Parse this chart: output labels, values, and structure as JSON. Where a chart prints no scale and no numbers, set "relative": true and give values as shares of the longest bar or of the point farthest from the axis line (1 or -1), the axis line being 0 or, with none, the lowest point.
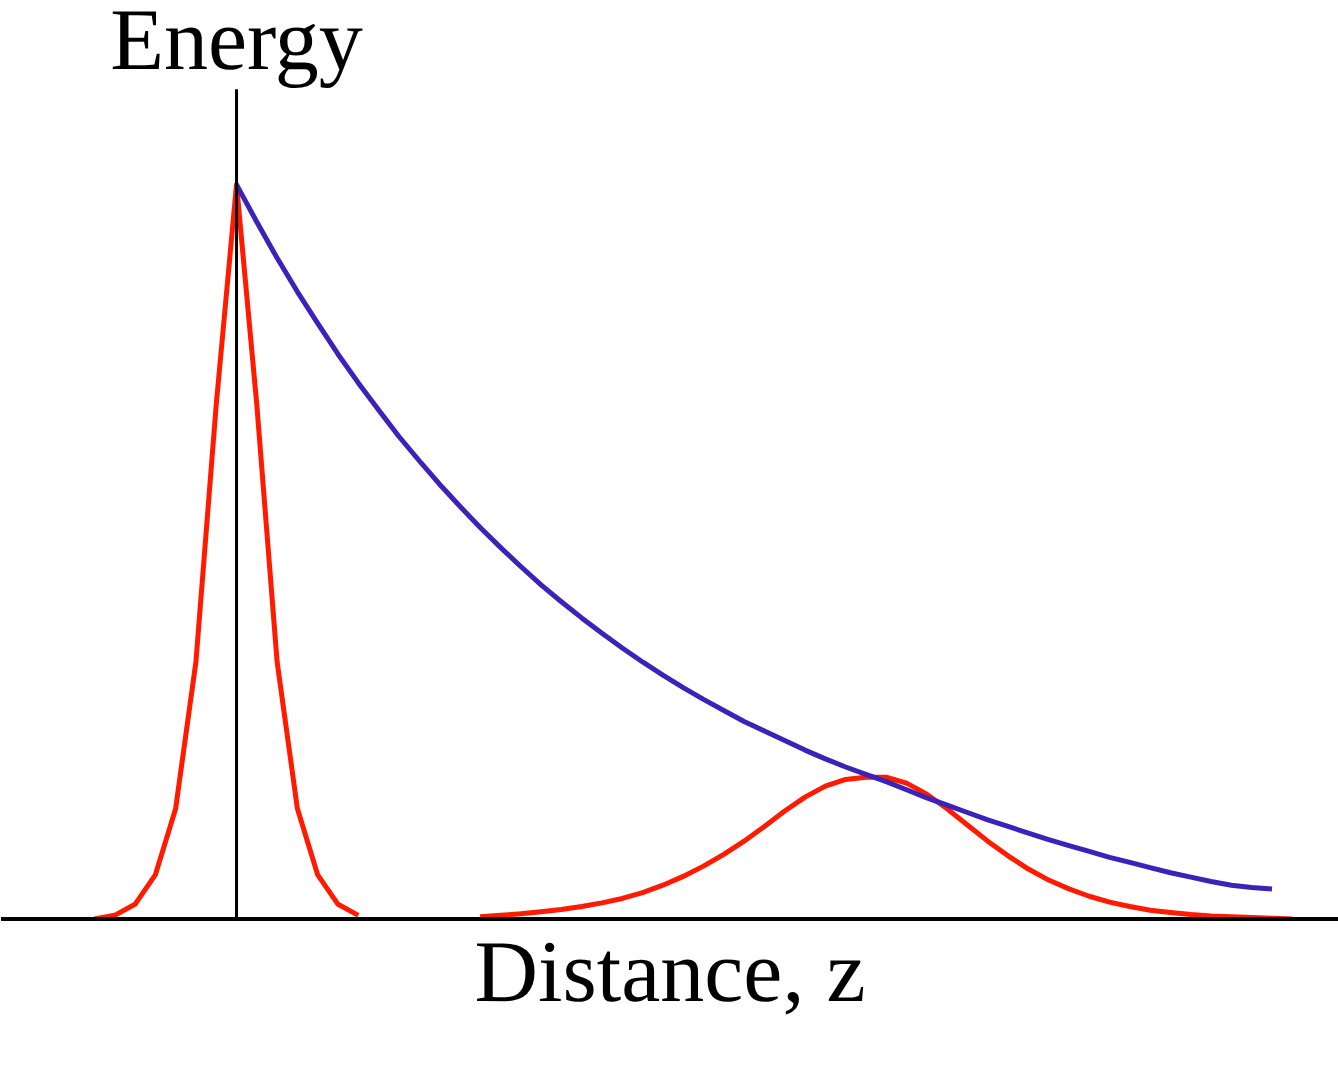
{
  "chart_data": {
    "type": "line",
    "relative": true,
    "xlabel": "Distance, z",
    "ylabel": "Energy",
    "categories": [
      null,
      null,
      null,
      null,
      null,
      null,
      null,
      null,
      null,
      null,
      null,
      null,
      null,
      null,
      null,
      null,
      null,
      null,
      null,
      null,
      null,
      null,
      null,
      null,
      null,
      null,
      null,
      null,
      null,
      null,
      null,
      null,
      null,
      null,
      null,
      null,
      null,
      null,
      null,
      null,
      null,
      null,
      null,
      null,
      null,
      null,
      null,
      null,
      null,
      null,
      null,
      null,
      null,
      null,
      null,
      null,
      null,
      null,
      null,
      null
    ],
    "series": [
      {
        "color": "#ff1a00",
        "values": [
          0,
          0.005,
          0.02,
          0.06,
          0.15,
          0.35,
          0.7,
          1.0,
          0.7,
          0.35,
          0.15,
          0.06,
          0.02,
          0.005,
          null,
          null,
          null,
          null,
          null,
          0.003,
          0.005,
          0.007,
          0.01,
          0.013,
          0.017,
          0.022,
          0.028,
          0.036,
          0.046,
          0.058,
          0.072,
          0.088,
          0.106,
          0.126,
          0.147,
          0.166,
          0.181,
          0.19,
          0.193,
          0.193,
          0.185,
          0.17,
          0.15,
          0.128,
          0.106,
          0.086,
          0.068,
          0.053,
          0.041,
          0.031,
          0.023,
          0.017,
          0.012,
          0.009,
          0.006,
          0.004,
          0.003,
          0.002,
          0.001,
          0
        ]
      },
      {
        "color": "#3b22b8",
        "values": [
          null,
          null,
          null,
          null,
          null,
          null,
          null,
          1.0,
          0.949,
          0.9,
          0.854,
          0.811,
          0.769,
          0.73,
          0.693,
          0.657,
          0.624,
          0.592,
          0.562,
          0.533,
          0.506,
          0.48,
          0.455,
          0.432,
          0.41,
          0.389,
          0.369,
          0.35,
          0.332,
          0.315,
          0.299,
          0.284,
          0.269,
          0.256,
          0.243,
          0.23,
          0.218,
          0.207,
          0.197,
          0.187,
          0.176,
          0.165,
          0.155,
          0.145,
          0.135,
          0.126,
          0.117,
          0.108,
          0.1,
          0.092,
          0.084,
          0.077,
          0.07,
          0.063,
          0.057,
          0.051,
          0.046,
          0.043,
          0.041,
          null
        ]
      }
    ]
  }
}
